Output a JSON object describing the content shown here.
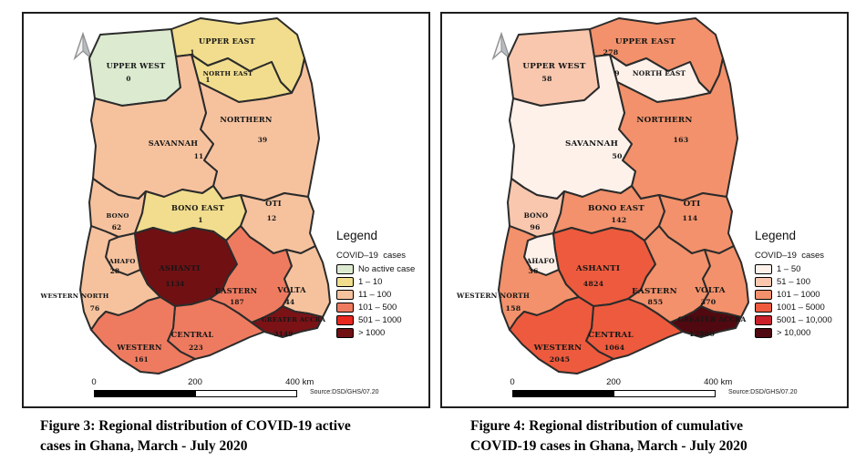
{
  "figures": [
    {
      "id": "figure-3",
      "caption_line1": "Figure 3: Regional distribution of COVID-19 active",
      "caption_line2": "cases in Ghana, March - July 2020",
      "legend": {
        "title": "Legend",
        "subtitle": "COVID–19  cases",
        "items": [
          {
            "label": "No active case",
            "color": "#dcead0"
          },
          {
            "label": "1 – 10",
            "color": "#f1dd8d"
          },
          {
            "label": "11 – 100",
            "color": "#f6c29e"
          },
          {
            "label": "101 – 500",
            "color": "#ee7b60"
          },
          {
            "label": "501 – 1000",
            "color": "#e8271e"
          },
          {
            "label": "> 1000",
            "color": "#701013"
          }
        ]
      },
      "scalebar": {
        "start": "0",
        "mid": "200",
        "end": "400 km"
      },
      "source": "Source:DSD/GHS/07.20",
      "north_arrow": "north-arrow",
      "regions": [
        {
          "id": "upper-west",
          "name": "UPPER WEST",
          "value": "0",
          "color": "#dcead0"
        },
        {
          "id": "upper-east",
          "name": "UPPER EAST",
          "value": "1",
          "color": "#f1dd8d"
        },
        {
          "id": "north-east",
          "name": "NORTH EAST",
          "value": "1",
          "color": "#f1dd8d"
        },
        {
          "id": "northern",
          "name": "NORTHERN",
          "value": "39",
          "color": "#f6c29e"
        },
        {
          "id": "savannah",
          "name": "SAVANNAH",
          "value": "11",
          "color": "#f6c29e"
        },
        {
          "id": "bono",
          "name": "BONO",
          "value": "62",
          "color": "#f6c29e"
        },
        {
          "id": "bono-east",
          "name": "BONO EAST",
          "value": "1",
          "color": "#f1dd8d"
        },
        {
          "id": "oti",
          "name": "OTI",
          "value": "12",
          "color": "#f6c29e"
        },
        {
          "id": "ahafo",
          "name": "AHAFO",
          "value": "28",
          "color": "#f6c29e"
        },
        {
          "id": "western-north",
          "name": "WESTERN NORTH",
          "value": "76",
          "color": "#f6c29e"
        },
        {
          "id": "ashanti",
          "name": "ASHANTI",
          "value": "1134",
          "color": "#701013"
        },
        {
          "id": "eastern",
          "name": "EASTERN",
          "value": "187",
          "color": "#ee7b60"
        },
        {
          "id": "volta",
          "name": "VOLTA",
          "value": "44",
          "color": "#f6c29e"
        },
        {
          "id": "central",
          "name": "CENTRAL",
          "value": "223",
          "color": "#ee7b60"
        },
        {
          "id": "western",
          "name": "WESTERN",
          "value": "161",
          "color": "#ee7b60"
        },
        {
          "id": "greater-accra",
          "name": "GREATER ACCRA",
          "value": "3149",
          "color": "#7a1216"
        }
      ]
    },
    {
      "id": "figure-4",
      "caption_line1": "Figure 4: Regional distribution of cumulative",
      "caption_line2": "COVID-19 cases in Ghana, March - July 2020",
      "legend": {
        "title": "Legend",
        "subtitle": "COVID–19  cases",
        "items": [
          {
            "label": "1 – 50",
            "color": "#fdf1ea"
          },
          {
            "label": "51 – 100",
            "color": "#f8c7ae"
          },
          {
            "label": "101 – 1000",
            "color": "#f2916b"
          },
          {
            "label": "1001 – 5000",
            "color": "#ee5a3d"
          },
          {
            "label": "5001 – 10,000",
            "color": "#c9202a"
          },
          {
            "label": "> 10,000",
            "color": "#500910"
          }
        ]
      },
      "scalebar": {
        "start": "0",
        "mid": "200",
        "end": "400 km"
      },
      "source": "Source:DSD/GHS/07.20",
      "north_arrow": "north-arrow",
      "regions": [
        {
          "id": "upper-west",
          "name": "UPPER WEST",
          "value": "58",
          "color": "#f8c7ae"
        },
        {
          "id": "upper-east",
          "name": "UPPER EAST",
          "value": "278",
          "color": "#f2916b"
        },
        {
          "id": "north-east",
          "name": "NORTH EAST",
          "value": "9",
          "color": "#fdf1ea"
        },
        {
          "id": "northern",
          "name": "NORTHERN",
          "value": "163",
          "color": "#f2916b"
        },
        {
          "id": "savannah",
          "name": "SAVANNAH",
          "value": "50",
          "color": "#fdf1ea"
        },
        {
          "id": "bono",
          "name": "BONO",
          "value": "96",
          "color": "#f8c7ae"
        },
        {
          "id": "bono-east",
          "name": "BONO EAST",
          "value": "142",
          "color": "#f2916b"
        },
        {
          "id": "oti",
          "name": "OTI",
          "value": "114",
          "color": "#f2916b"
        },
        {
          "id": "ahafo",
          "name": "AHAFO",
          "value": "36",
          "color": "#fdf1ea"
        },
        {
          "id": "western-north",
          "name": "WESTERN NORTH",
          "value": "158",
          "color": "#f2916b"
        },
        {
          "id": "ashanti",
          "name": "ASHANTI",
          "value": "4824",
          "color": "#ee5a3d"
        },
        {
          "id": "eastern",
          "name": "EASTERN",
          "value": "855",
          "color": "#f2916b"
        },
        {
          "id": "volta",
          "name": "VOLTA",
          "value": "370",
          "color": "#f2916b"
        },
        {
          "id": "central",
          "name": "CENTRAL",
          "value": "1064",
          "color": "#ee5a3d"
        },
        {
          "id": "western",
          "name": "WESTERN",
          "value": "2045",
          "color": "#ee5a3d"
        },
        {
          "id": "greater-accra",
          "name": "GREATER ACCRA",
          "value": "12560",
          "color": "#500910"
        }
      ]
    }
  ]
}
